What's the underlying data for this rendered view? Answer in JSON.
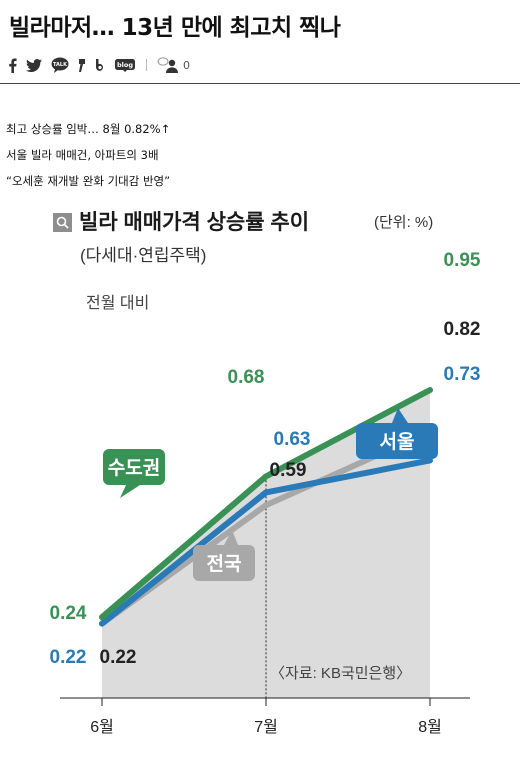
{
  "article": {
    "headline": "빌라마저… 13년 만에 최고치 찍나",
    "share": {
      "icons": [
        "facebook-icon",
        "twitter-icon",
        "kakaotalk-icon",
        "kakaostory-icon",
        "band-icon",
        "blog-icon"
      ],
      "talk_label": "TALK",
      "blog_label": "blog",
      "comment_count": "0"
    },
    "subheadlines": [
      "최고 상승률 임박… 8월 0.82%↑",
      "서울 빌라 매매건, 아파트의 3배",
      "“오세훈 재개발 완화 기대감 반영”"
    ]
  },
  "chart_data": {
    "type": "line",
    "title": "빌라 매매가격 상승률 추이",
    "unit": "(단위: %)",
    "subtitle": "(다세대·연립주택)",
    "note": "전월 대비",
    "source": "〈자료: KB국민은행〉",
    "categories": [
      "6월",
      "7월",
      "8월"
    ],
    "ylim": [
      0,
      1.1
    ],
    "grid": false,
    "series": [
      {
        "name": "수도권",
        "values": [
          0.24,
          0.68,
          0.95
        ],
        "labels": [
          "0.24",
          "0.68",
          "0.95"
        ],
        "color": "#3a9156"
      },
      {
        "name": "전국",
        "values": [
          0.22,
          0.59,
          0.82
        ],
        "labels": [
          "0.22",
          "0.59",
          "0.82"
        ],
        "color": "#a8a8a8"
      },
      {
        "name": "서울",
        "values": [
          0.22,
          0.63,
          0.73
        ],
        "labels": [
          "0.22",
          "0.63",
          "0.73"
        ],
        "color": "#2a7ab8"
      }
    ],
    "area_color": "#dcdcdc",
    "text_color": "#222222"
  }
}
